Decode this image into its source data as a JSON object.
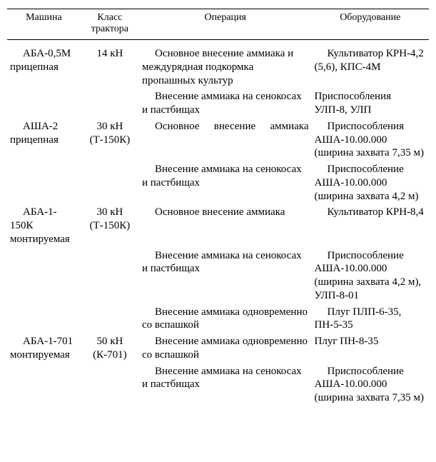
{
  "headers": {
    "machine": "Машина",
    "tractor_class": "Класс трактора",
    "operation": "Операция",
    "equipment": "Оборудование"
  },
  "rows": [
    {
      "machine_line1": "АБА-0,5М",
      "machine_line2": "прицепная",
      "tractor": "14 кН",
      "op1": "Основное внесение аммиака и междурядная подкормка пропашных культур",
      "eq1": "Культиватор КРН-4,2 (5,6), КПС-4М",
      "op2": "Внесение аммиака на сенокосах и пастбищах",
      "eq2": "Приспособления УЛП-8, УЛП"
    },
    {
      "machine_line1": "АША-2",
      "machine_line2": "прицепная",
      "tractor_line1": "30 кН",
      "tractor_line2": "(Т-150К)",
      "op1": "Основное внесение аммиака",
      "eq1": "Приспособления АША-10.00.000 (ширина захвата 7,35 м)",
      "op2": "Внесение аммиака на сенокосах и пастбищах",
      "eq2": "Приспособление АША-10.00.000 (ширина захвата 4,2 м)"
    },
    {
      "machine_line1": "АБА-1-150К",
      "machine_line2": "монтируемая",
      "tractor_line1": "30 кН",
      "tractor_line2": "(Т-150К)",
      "op1": "Основное внесение аммиака",
      "eq1": "Культиватор КРН-8,4",
      "op2": "Внесение аммиака на сенокосах и пастбищах",
      "eq2": "Приспособление АША-10.00.000 (ширина захвата 4,2 м), УЛП-8-01",
      "op3": "Внесение аммиака одновременно со вспашкой",
      "eq3": "Плуг ПЛП-6-35, ПН-5-35"
    },
    {
      "machine_line1": "АБА-1-701",
      "machine_line2": "монтируемая",
      "tractor_line1": "50 кН",
      "tractor_line2": "(К-701)",
      "op1": "Внесение аммиака одновременно со вспашкой",
      "eq1": "Плуг ПН-8-35",
      "op2": "Внесение аммиака на сенокосах и пастбищах",
      "eq2": "Приспособление АША-10.00.000 (ширина захвата 7,35 м)"
    }
  ]
}
